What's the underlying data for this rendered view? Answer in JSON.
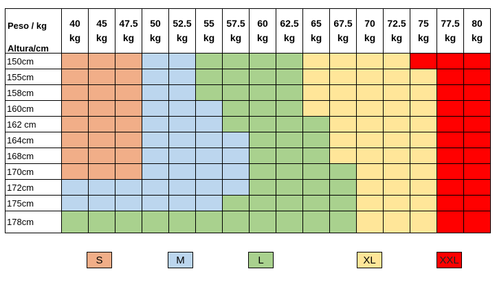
{
  "header": {
    "corner_top": "Peso / kg",
    "corner_bottom": "Altura/cm",
    "weights": [
      {
        "value": "40",
        "unit": "kg"
      },
      {
        "value": "45",
        "unit": "kg"
      },
      {
        "value": "47.5",
        "unit": "kg"
      },
      {
        "value": "50",
        "unit": "kg"
      },
      {
        "value": "52.5",
        "unit": "kg"
      },
      {
        "value": "55",
        "unit": "kg"
      },
      {
        "value": "57.5",
        "unit": "kg"
      },
      {
        "value": "60",
        "unit": "kg"
      },
      {
        "value": "62.5",
        "unit": "kg"
      },
      {
        "value": "65",
        "unit": "kg"
      },
      {
        "value": "67.5",
        "unit": "kg"
      },
      {
        "value": "70",
        "unit": "kg"
      },
      {
        "value": "72.5",
        "unit": "kg"
      },
      {
        "value": "75",
        "unit": "kg"
      },
      {
        "value": "77.5",
        "unit": "kg"
      },
      {
        "value": "80",
        "unit": "kg"
      }
    ]
  },
  "rows": [
    {
      "height": "150cm",
      "sizes": [
        "S",
        "S",
        "S",
        "M",
        "M",
        "L",
        "L",
        "L",
        "L",
        "XL",
        "XL",
        "XL",
        "XL",
        "XXL",
        "XXL",
        "XXL"
      ]
    },
    {
      "height": "155cm",
      "sizes": [
        "S",
        "S",
        "S",
        "M",
        "M",
        "L",
        "L",
        "L",
        "L",
        "XL",
        "XL",
        "XL",
        "XL",
        "XL",
        "XXL",
        "XXL"
      ]
    },
    {
      "height": "158cm",
      "sizes": [
        "S",
        "S",
        "S",
        "M",
        "M",
        "L",
        "L",
        "L",
        "L",
        "XL",
        "XL",
        "XL",
        "XL",
        "XL",
        "XXL",
        "XXL"
      ]
    },
    {
      "height": "160cm",
      "sizes": [
        "S",
        "S",
        "S",
        "M",
        "M",
        "M",
        "L",
        "L",
        "L",
        "XL",
        "XL",
        "XL",
        "XL",
        "XL",
        "XXL",
        "XXL"
      ]
    },
    {
      "height": "162 cm",
      "sizes": [
        "S",
        "S",
        "S",
        "M",
        "M",
        "M",
        "L",
        "L",
        "L",
        "L",
        "XL",
        "XL",
        "XL",
        "XL",
        "XXL",
        "XXL"
      ]
    },
    {
      "height": "164cm",
      "sizes": [
        "S",
        "S",
        "S",
        "M",
        "M",
        "M",
        "M",
        "L",
        "L",
        "L",
        "XL",
        "XL",
        "XL",
        "XL",
        "XXL",
        "XXL"
      ]
    },
    {
      "height": "168cm",
      "sizes": [
        "S",
        "S",
        "S",
        "M",
        "M",
        "M",
        "M",
        "L",
        "L",
        "L",
        "XL",
        "XL",
        "XL",
        "XL",
        "XXL",
        "XXL"
      ]
    },
    {
      "height": "170cm",
      "sizes": [
        "S",
        "S",
        "S",
        "M",
        "M",
        "M",
        "M",
        "L",
        "L",
        "L",
        "L",
        "XL",
        "XL",
        "XL",
        "XXL",
        "XXL"
      ]
    },
    {
      "height": "172cm",
      "sizes": [
        "M",
        "M",
        "M",
        "M",
        "M",
        "M",
        "M",
        "L",
        "L",
        "L",
        "L",
        "XL",
        "XL",
        "XL",
        "XXL",
        "XXL"
      ]
    },
    {
      "height": "175cm",
      "sizes": [
        "M",
        "M",
        "M",
        "M",
        "M",
        "M",
        "L",
        "L",
        "L",
        "L",
        "L",
        "XL",
        "XL",
        "XL",
        "XXL",
        "XXL"
      ]
    },
    {
      "height": "178cm",
      "sizes": [
        "L",
        "L",
        "L",
        "L",
        "L",
        "L",
        "L",
        "L",
        "L",
        "L",
        "L",
        "XL",
        "XL",
        "XL",
        "XXL",
        "XXL"
      ]
    }
  ],
  "legend": [
    {
      "label": "S",
      "color": "#f1ae88"
    },
    {
      "label": "M",
      "color": "#bcd6ee"
    },
    {
      "label": "L",
      "color": "#a9d18e"
    },
    {
      "label": "XL",
      "color": "#ffe699"
    },
    {
      "label": "XXL",
      "color": "#ff0000"
    }
  ],
  "colors": {
    "S": "#f1ae88",
    "M": "#bcd6ee",
    "L": "#a9d18e",
    "XL": "#ffe699",
    "XXL": "#ff0000"
  }
}
